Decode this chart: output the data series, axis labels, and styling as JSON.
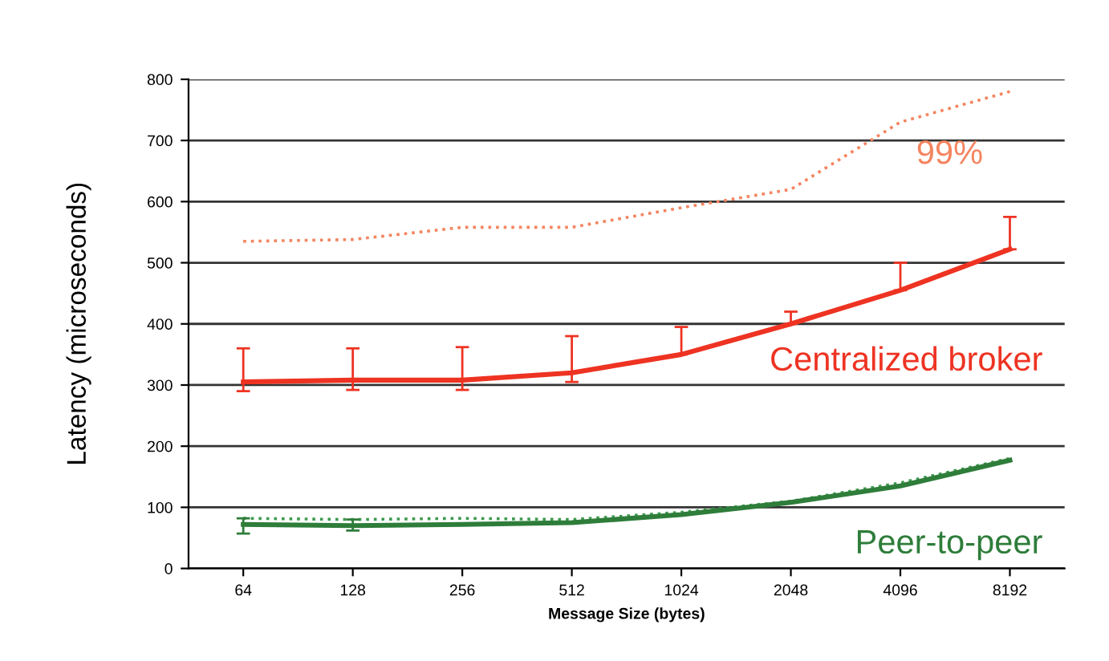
{
  "chart_data": {
    "type": "line",
    "xlabel": "Message Size (bytes)",
    "ylabel": "Latency (microseconds)",
    "categories": [
      "64",
      "128",
      "256",
      "512",
      "1024",
      "2048",
      "4096",
      "8192"
    ],
    "ylim": [
      0,
      800
    ],
    "yticks": [
      0,
      100,
      200,
      300,
      400,
      500,
      600,
      700,
      800
    ],
    "grid": "y",
    "marker": "none",
    "series": [
      {
        "name": "99%",
        "color": "#f4845f",
        "line_style": "dotted",
        "values": [
          535,
          538,
          558,
          558,
          590,
          620,
          730,
          780
        ]
      },
      {
        "name": "Centralized broker",
        "color": "#ee3322",
        "line_style": "solid",
        "values": [
          305,
          308,
          308,
          320,
          350,
          400,
          455,
          522
        ],
        "errors": [
          [
            290,
            360
          ],
          [
            292,
            360
          ],
          [
            292,
            362
          ],
          [
            305,
            380
          ],
          [
            350,
            395
          ],
          [
            400,
            420
          ],
          [
            455,
            500
          ],
          [
            522,
            575
          ]
        ]
      },
      {
        "color": "#3f9a4f",
        "line_style": "dotted",
        "values": [
          82,
          80,
          82,
          80,
          92,
          110,
          140,
          180
        ]
      },
      {
        "name": "Peer-to-peer",
        "color": "#2e7d3a",
        "line_style": "solid",
        "values": [
          72,
          70,
          72,
          75,
          88,
          108,
          135,
          177
        ],
        "errors": [
          [
            57,
            82
          ],
          [
            62,
            80
          ],
          null,
          null,
          null,
          null,
          null,
          null
        ]
      }
    ]
  }
}
